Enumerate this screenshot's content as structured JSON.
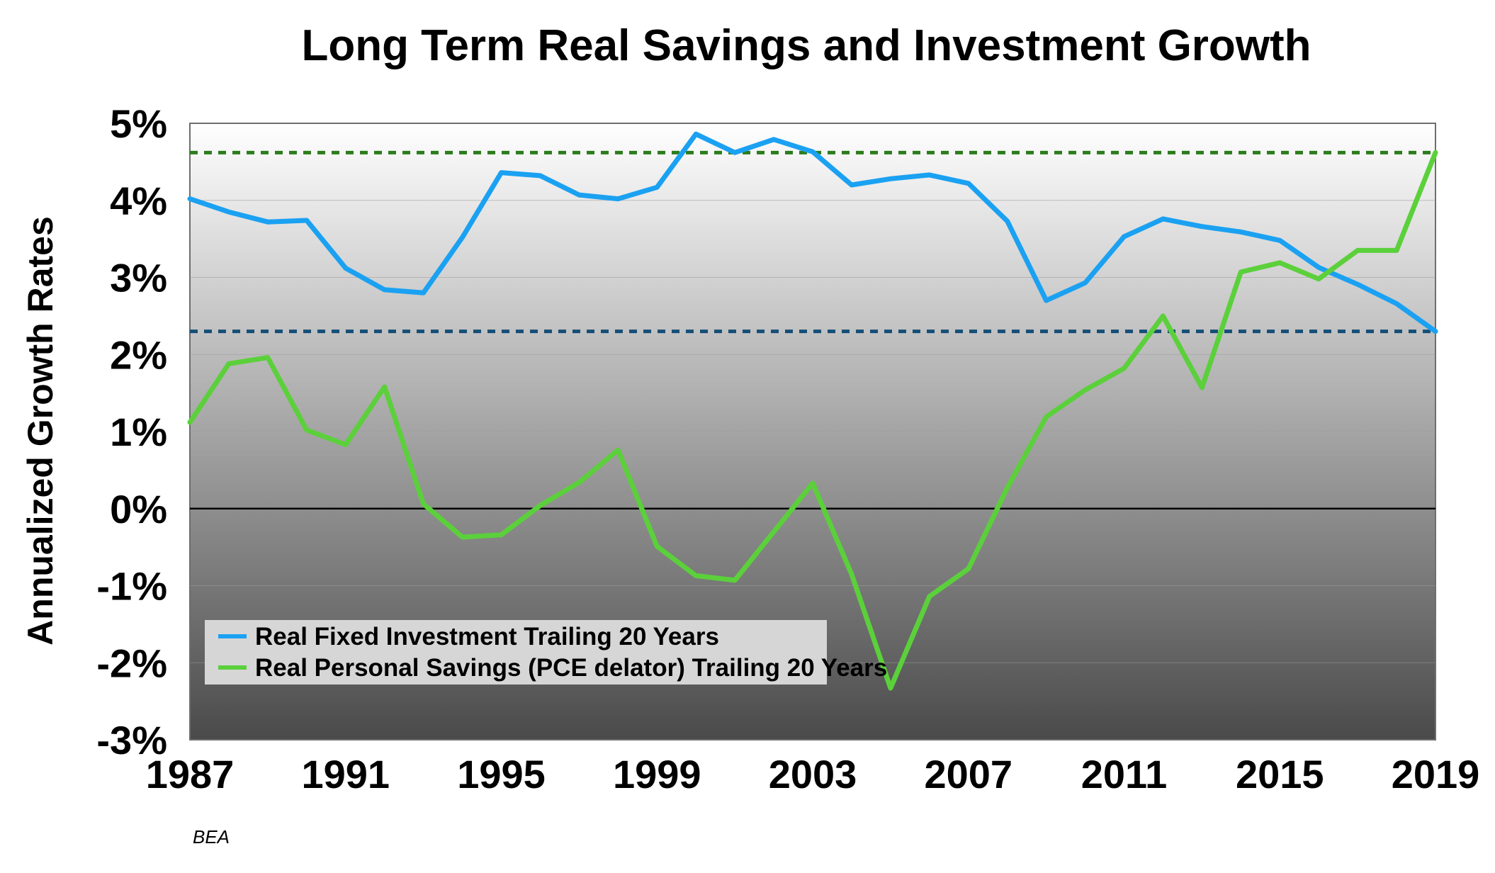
{
  "chart_data": {
    "type": "line",
    "title": "Long Term Real Savings and Investment Growth",
    "xlabel": "",
    "ylabel": "Annualized Growth Rates",
    "source": "BEA",
    "xlim": [
      1987,
      2019
    ],
    "ylim": [
      -3,
      5
    ],
    "x_ticks": [
      {
        "value": 1987,
        "label": "1987"
      },
      {
        "value": 1991,
        "label": "1991"
      },
      {
        "value": 1995,
        "label": "1995"
      },
      {
        "value": 1999,
        "label": "1999"
      },
      {
        "value": 2003,
        "label": "2003"
      },
      {
        "value": 2007,
        "label": "2007"
      },
      {
        "value": 2011,
        "label": "2011"
      },
      {
        "value": 2015,
        "label": "2015"
      },
      {
        "value": 2019,
        "label": "2019"
      }
    ],
    "y_ticks": [
      {
        "value": 5,
        "label": "5%"
      },
      {
        "value": 4,
        "label": "4%"
      },
      {
        "value": 3,
        "label": "3%"
      },
      {
        "value": 2,
        "label": "2%"
      },
      {
        "value": 1,
        "label": "1%"
      },
      {
        "value": 0,
        "label": "0%"
      },
      {
        "value": -1,
        "label": "-1%"
      },
      {
        "value": -2,
        "label": "-2%"
      },
      {
        "value": -3,
        "label": "-3%"
      }
    ],
    "grid": true,
    "legend_position": "bottom-left",
    "x": [
      1987,
      1988,
      1989,
      1990,
      1991,
      1992,
      1993,
      1994,
      1995,
      1996,
      1997,
      1998,
      1999,
      2000,
      2001,
      2002,
      2003,
      2004,
      2005,
      2006,
      2007,
      2008,
      2009,
      2010,
      2011,
      2012,
      2013,
      2014,
      2015,
      2016,
      2017,
      2018,
      2019
    ],
    "series": [
      {
        "name": "Real Fixed Investment Trailing 20 Years",
        "color": "#1ba1f2",
        "values": [
          4.02,
          3.85,
          3.72,
          3.74,
          3.12,
          2.84,
          2.8,
          3.52,
          4.36,
          4.32,
          4.07,
          4.02,
          4.17,
          4.86,
          4.62,
          4.79,
          4.63,
          4.2,
          4.28,
          4.33,
          4.22,
          3.73,
          2.7,
          2.93,
          3.53,
          3.76,
          3.66,
          3.59,
          3.48,
          3.13,
          2.91,
          2.66,
          2.3
        ]
      },
      {
        "name": "Real Personal Savings (PCE delator) Trailing 20 Years",
        "color": "#5bd03b",
        "values": [
          1.12,
          1.88,
          1.96,
          1.02,
          0.83,
          1.58,
          0.06,
          -0.37,
          -0.34,
          0.04,
          0.34,
          0.76,
          -0.49,
          -0.87,
          -0.93,
          -0.3,
          0.33,
          -0.85,
          -2.33,
          -1.14,
          -0.78,
          0.27,
          1.19,
          1.54,
          1.82,
          2.5,
          1.57,
          3.07,
          3.19,
          2.98,
          3.35,
          3.35,
          4.62
        ]
      }
    ],
    "reference_lines": [
      {
        "value": 4.62,
        "color": "#2b7d1c",
        "style": "dotted"
      },
      {
        "value": 2.3,
        "color": "#144e77",
        "style": "dotted"
      },
      {
        "value": 0,
        "color": "#000000",
        "style": "solid"
      }
    ],
    "background_gradient": [
      "#ffffff",
      "#4a4a4a"
    ]
  }
}
